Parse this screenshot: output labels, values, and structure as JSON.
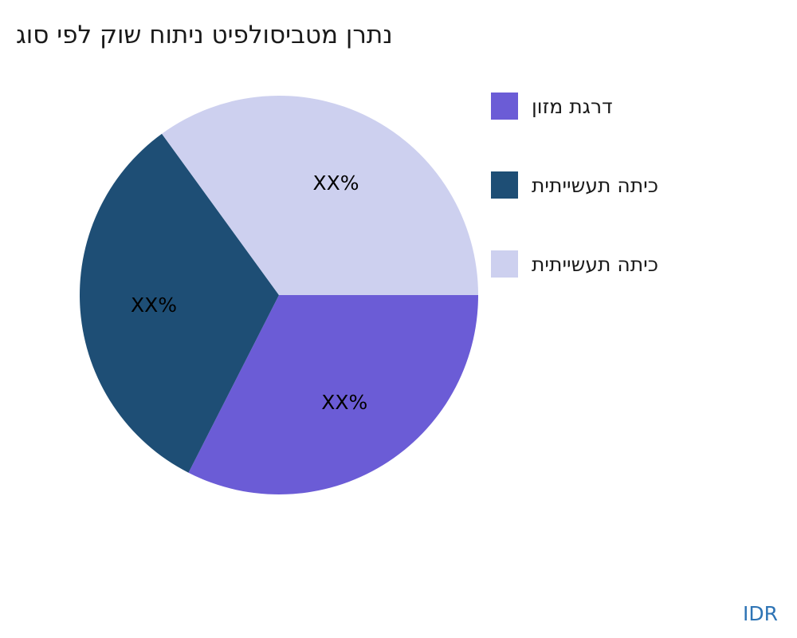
{
  "watermark": "IDR",
  "chart_data": {
    "type": "pie",
    "title": "נתרן מטביסולפיט ניתוח שוק לפי סוג",
    "labels": [
      "דרגת מזון",
      "כיתה תעשייתית",
      "כיתה תעשייתית"
    ],
    "values": [
      32.5,
      32.5,
      35
    ],
    "slice_labels": [
      "XX%",
      "XX%",
      "XX%"
    ],
    "colors": [
      "#6b5cd6",
      "#1e4e75",
      "#cdd0ef"
    ],
    "start_angle": 0,
    "direction": "clockwise",
    "legend_position": "right",
    "title_color": "#1a1a1a",
    "watermark_color": "#2e74b5"
  }
}
